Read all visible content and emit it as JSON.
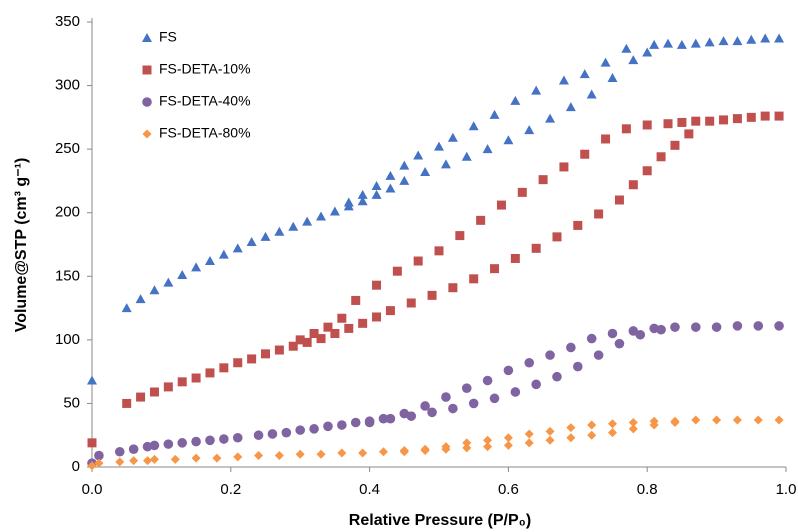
{
  "chart_data": {
    "type": "scatter",
    "x_label": "Relative Pressure (P/P₀)",
    "y_label": "Volume@STP (cm³ g⁻¹)",
    "xlim": [
      0,
      1
    ],
    "ylim": [
      0,
      350
    ],
    "xticks": [
      {
        "value": 0,
        "label": "0.0"
      },
      {
        "value": 0.2,
        "label": "0.2"
      },
      {
        "value": 0.4,
        "label": "0.4"
      },
      {
        "value": 0.6,
        "label": "0.6"
      },
      {
        "value": 0.8,
        "label": "0.8"
      },
      {
        "value": 1,
        "label": "1.0"
      }
    ],
    "yticks": [
      0,
      50,
      100,
      150,
      200,
      250,
      300,
      350
    ],
    "grid": false,
    "legend": "upper left",
    "series": [
      {
        "name": "FS",
        "color": "#4472c4",
        "marker": "triangle",
        "x": [
          0.0,
          0.05,
          0.07,
          0.09,
          0.11,
          0.13,
          0.15,
          0.17,
          0.19,
          0.21,
          0.23,
          0.25,
          0.27,
          0.29,
          0.31,
          0.33,
          0.35,
          0.37,
          0.39,
          0.41,
          0.43,
          0.45,
          0.48,
          0.51,
          0.54,
          0.57,
          0.6,
          0.63,
          0.66,
          0.69,
          0.72,
          0.75,
          0.78,
          0.8,
          0.99,
          0.97,
          0.95,
          0.93,
          0.91,
          0.89,
          0.87,
          0.85,
          0.83,
          0.81,
          0.77,
          0.74,
          0.71,
          0.68,
          0.64,
          0.61,
          0.58,
          0.55,
          0.52,
          0.5,
          0.47,
          0.45,
          0.43,
          0.41,
          0.39,
          0.37
        ],
        "values": [
          68,
          125,
          132,
          139,
          145,
          151,
          157,
          162,
          167,
          172,
          177,
          181,
          185,
          189,
          193,
          197,
          201,
          205,
          209,
          214,
          219,
          225,
          232,
          238,
          244,
          250,
          257,
          265,
          274,
          283,
          293,
          306,
          320,
          326,
          337,
          337,
          336,
          335,
          335,
          334,
          333,
          332,
          333,
          332,
          329,
          318,
          309,
          304,
          296,
          288,
          277,
          268,
          259,
          252,
          245,
          237,
          229,
          221,
          214,
          208
        ]
      },
      {
        "name": "FS-DETA-10%",
        "color": "#c0504d",
        "marker": "square",
        "x": [
          0.0,
          0.05,
          0.07,
          0.09,
          0.11,
          0.13,
          0.15,
          0.17,
          0.19,
          0.21,
          0.23,
          0.25,
          0.27,
          0.29,
          0.31,
          0.33,
          0.35,
          0.37,
          0.39,
          0.41,
          0.43,
          0.46,
          0.49,
          0.52,
          0.55,
          0.58,
          0.61,
          0.64,
          0.67,
          0.7,
          0.73,
          0.76,
          0.78,
          0.8,
          0.82,
          0.84,
          0.86,
          0.99,
          0.97,
          0.95,
          0.93,
          0.91,
          0.89,
          0.87,
          0.85,
          0.83,
          0.8,
          0.77,
          0.74,
          0.71,
          0.68,
          0.65,
          0.62,
          0.59,
          0.56,
          0.53,
          0.5,
          0.47,
          0.44,
          0.41,
          0.38,
          0.36,
          0.34,
          0.32,
          0.3
        ],
        "values": [
          19,
          50,
          55,
          59,
          63,
          67,
          70,
          74,
          78,
          82,
          85,
          89,
          92,
          95,
          98,
          101,
          105,
          109,
          113,
          118,
          123,
          129,
          135,
          141,
          148,
          156,
          164,
          172,
          181,
          190,
          199,
          210,
          222,
          233,
          244,
          253,
          262,
          276,
          276,
          275,
          274,
          273,
          272,
          272,
          271,
          270,
          269,
          266,
          258,
          246,
          236,
          226,
          216,
          206,
          194,
          182,
          170,
          162,
          154,
          143,
          131,
          117,
          110,
          105,
          100
        ]
      },
      {
        "name": "FS-DETA-40%",
        "color": "#8064a2",
        "marker": "circle",
        "x": [
          0.0,
          0.01,
          0.04,
          0.06,
          0.08,
          0.09,
          0.11,
          0.13,
          0.15,
          0.17,
          0.19,
          0.21,
          0.24,
          0.26,
          0.28,
          0.3,
          0.32,
          0.34,
          0.36,
          0.38,
          0.4,
          0.43,
          0.46,
          0.49,
          0.52,
          0.55,
          0.58,
          0.61,
          0.64,
          0.67,
          0.7,
          0.73,
          0.76,
          0.79,
          0.82,
          0.99,
          0.96,
          0.93,
          0.9,
          0.87,
          0.84,
          0.81,
          0.78,
          0.75,
          0.72,
          0.69,
          0.66,
          0.63,
          0.6,
          0.57,
          0.54,
          0.51,
          0.48,
          0.45,
          0.42,
          0.4
        ],
        "values": [
          3,
          9,
          12,
          14,
          16,
          17,
          18,
          19,
          20,
          21,
          22,
          23,
          25,
          26,
          27,
          29,
          30,
          32,
          33,
          35,
          36,
          38,
          40,
          43,
          46,
          50,
          54,
          59,
          65,
          71,
          79,
          88,
          97,
          104,
          108,
          111,
          111,
          111,
          110,
          110,
          110,
          109,
          107,
          105,
          101,
          94,
          88,
          82,
          76,
          68,
          62,
          55,
          48,
          42,
          38,
          35
        ]
      },
      {
        "name": "FS-DETA-80%",
        "color": "#f79646",
        "marker": "diamond",
        "x": [
          0.0,
          0.01,
          0.04,
          0.06,
          0.08,
          0.09,
          0.12,
          0.15,
          0.18,
          0.21,
          0.24,
          0.27,
          0.3,
          0.33,
          0.36,
          0.39,
          0.42,
          0.45,
          0.48,
          0.51,
          0.54,
          0.57,
          0.6,
          0.63,
          0.66,
          0.69,
          0.72,
          0.75,
          0.78,
          0.81,
          0.84,
          0.99,
          0.96,
          0.93,
          0.9,
          0.87,
          0.84,
          0.81,
          0.78,
          0.75,
          0.72,
          0.69,
          0.66,
          0.63,
          0.6,
          0.57,
          0.54,
          0.51,
          0.48,
          0.45
        ],
        "values": [
          1,
          3,
          4,
          5,
          5,
          6,
          6,
          7,
          7,
          8,
          9,
          9,
          10,
          10,
          11,
          11,
          12,
          12,
          13,
          14,
          15,
          16,
          17,
          19,
          21,
          23,
          25,
          27,
          30,
          33,
          35,
          37,
          37,
          37,
          37,
          37,
          36,
          36,
          35,
          34,
          33,
          31,
          28,
          26,
          23,
          21,
          19,
          16,
          14,
          13
        ]
      }
    ]
  }
}
